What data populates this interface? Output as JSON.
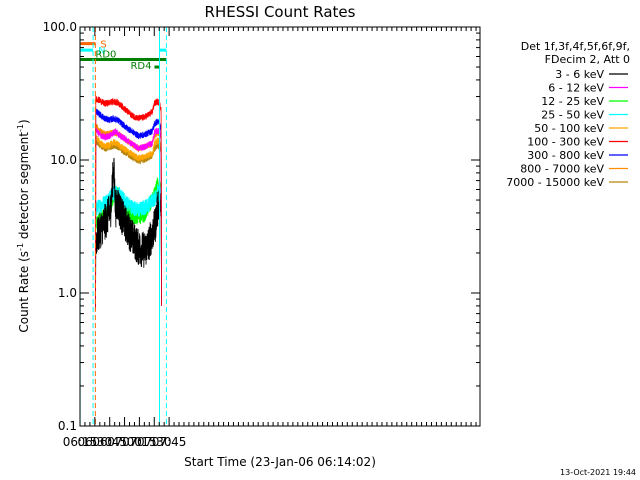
{
  "chart_data": {
    "type": "line",
    "title": "RHESSI Count Rates",
    "xlabel": "Start Time (23-Jan-06 06:14:02)",
    "ylabel_parts": [
      "Count Rate (s",
      "-1",
      " detector segment",
      "-1",
      ")"
    ],
    "yscale": "log",
    "ylim": [
      0.1,
      100.0
    ],
    "xlim_min": [
      375,
      779
    ],
    "y_ticks": [
      {
        "value": 0.1,
        "label": "0.1"
      },
      {
        "value": 1.0,
        "label": "1.0"
      },
      {
        "value": 10.0,
        "label": "10.0"
      },
      {
        "value": 100.0,
        "label": "100.0"
      }
    ],
    "x_ticks": [
      {
        "min": 375,
        "label": "06:15"
      },
      {
        "min": 390,
        "label": "06:30"
      },
      {
        "min": 405,
        "label": "06:45"
      },
      {
        "min": 420,
        "label": "07:00"
      },
      {
        "min": 435,
        "label": "07:15"
      },
      {
        "min": 450,
        "label": "07:30"
      },
      {
        "min": 465,
        "label": "07:45"
      }
    ],
    "legend_header": [
      "Det 1f,3f,4f,5f,6f,9f,",
      "FDecim 2, Att 0"
    ],
    "series": [
      {
        "name": "3 - 6 keV",
        "color": "#000000",
        "points": [
          [
            391,
            2.5
          ],
          [
            394,
            2.8
          ],
          [
            398,
            3.2
          ],
          [
            402,
            3.6
          ],
          [
            406,
            4.3
          ],
          [
            409,
            9.0
          ],
          [
            411,
            4.2
          ],
          [
            413,
            4.8
          ],
          [
            417,
            3.8
          ],
          [
            422,
            3.2
          ],
          [
            428,
            2.6
          ],
          [
            434,
            2.2
          ],
          [
            440,
            2.1
          ],
          [
            444,
            2.3
          ],
          [
            448,
            2.8
          ],
          [
            451,
            3.2
          ],
          [
            453,
            4.2
          ],
          [
            455,
            4.6
          ],
          [
            457,
            4.0
          ]
        ]
      },
      {
        "name": "6 - 12 keV",
        "color": "#ff00ff",
        "points": [
          [
            391,
            17.0
          ],
          [
            395,
            15.5
          ],
          [
            400,
            14.8
          ],
          [
            405,
            15.2
          ],
          [
            409,
            16.0
          ],
          [
            411,
            16.5
          ],
          [
            414,
            15.5
          ],
          [
            420,
            14.5
          ],
          [
            428,
            13.2
          ],
          [
            434,
            12.3
          ],
          [
            440,
            12.5
          ],
          [
            444,
            13.0
          ],
          [
            448,
            13.3
          ],
          [
            450,
            16.0
          ],
          [
            453,
            16.5
          ],
          [
            455,
            16.5
          ],
          [
            457,
            15.0
          ]
        ]
      },
      {
        "name": "12 - 25 keV",
        "color": "#00ff00",
        "points": [
          [
            391,
            3.3
          ],
          [
            395,
            3.6
          ],
          [
            400,
            4.0
          ],
          [
            405,
            4.6
          ],
          [
            409,
            5.2
          ],
          [
            413,
            5.5
          ],
          [
            417,
            4.9
          ],
          [
            422,
            4.2
          ],
          [
            428,
            3.8
          ],
          [
            434,
            3.7
          ],
          [
            440,
            3.9
          ],
          [
            444,
            4.4
          ],
          [
            448,
            5.0
          ],
          [
            451,
            5.6
          ],
          [
            453,
            6.5
          ],
          [
            455,
            6.2
          ],
          [
            457,
            5.8
          ]
        ]
      },
      {
        "name": "25 - 50 keV",
        "color": "#00ffff",
        "points": [
          [
            391,
            4.3
          ],
          [
            395,
            4.5
          ],
          [
            400,
            4.8
          ],
          [
            405,
            5.2
          ],
          [
            409,
            5.6
          ],
          [
            413,
            5.7
          ],
          [
            417,
            5.2
          ],
          [
            422,
            4.8
          ],
          [
            428,
            4.4
          ],
          [
            434,
            4.2
          ],
          [
            440,
            4.4
          ],
          [
            444,
            4.6
          ],
          [
            448,
            5.0
          ],
          [
            451,
            5.2
          ],
          [
            453,
            5.8
          ],
          [
            455,
            5.6
          ],
          [
            457,
            5.2
          ]
        ]
      },
      {
        "name": "50 - 100 keV",
        "color": "#ffa500",
        "points": [
          [
            391,
            15.0
          ],
          [
            395,
            13.6
          ],
          [
            400,
            12.6
          ],
          [
            405,
            13.0
          ],
          [
            409,
            13.6
          ],
          [
            413,
            13.2
          ],
          [
            417,
            12.5
          ],
          [
            422,
            11.8
          ],
          [
            428,
            11.0
          ],
          [
            434,
            10.3
          ],
          [
            440,
            10.6
          ],
          [
            444,
            10.9
          ],
          [
            448,
            11.2
          ],
          [
            450,
            13.0
          ],
          [
            453,
            14.0
          ],
          [
            455,
            13.8
          ],
          [
            457,
            12.8
          ]
        ]
      },
      {
        "name": "100 - 300 keV",
        "color": "#ff0000",
        "points": [
          [
            391,
            29.0
          ],
          [
            395,
            28.0
          ],
          [
            400,
            26.5
          ],
          [
            405,
            27.0
          ],
          [
            409,
            27.5
          ],
          [
            413,
            27.0
          ],
          [
            417,
            25.5
          ],
          [
            422,
            23.5
          ],
          [
            428,
            21.5
          ],
          [
            434,
            20.5
          ],
          [
            440,
            21.0
          ],
          [
            444,
            21.8
          ],
          [
            448,
            23.0
          ],
          [
            450,
            26.5
          ],
          [
            453,
            27.5
          ],
          [
            455,
            27.0
          ],
          [
            457,
            24.0
          ]
        ]
      },
      {
        "name": "300 - 800 keV",
        "color": "#0000ff",
        "points": [
          [
            391,
            23.5
          ],
          [
            395,
            22.0
          ],
          [
            400,
            20.5
          ],
          [
            405,
            20.0
          ],
          [
            409,
            20.5
          ],
          [
            413,
            20.0
          ],
          [
            417,
            18.8
          ],
          [
            422,
            17.5
          ],
          [
            428,
            16.3
          ],
          [
            434,
            15.2
          ],
          [
            440,
            15.5
          ],
          [
            444,
            16.0
          ],
          [
            448,
            16.5
          ],
          [
            450,
            18.5
          ],
          [
            453,
            19.5
          ],
          [
            455,
            19.0
          ],
          [
            457,
            16.8
          ]
        ]
      },
      {
        "name": "800 - 7000 keV",
        "color": "#ff8c00",
        "points": [
          [
            391,
            18.0
          ],
          [
            395,
            16.6
          ],
          [
            400,
            15.5
          ],
          [
            405,
            15.8
          ],
          [
            409,
            16.2
          ],
          [
            413,
            15.9
          ],
          [
            417,
            15.0
          ],
          [
            422,
            14.0
          ],
          [
            428,
            13.1
          ],
          [
            434,
            12.2
          ],
          [
            440,
            12.5
          ],
          [
            444,
            12.9
          ],
          [
            448,
            13.3
          ],
          [
            450,
            15.0
          ],
          [
            453,
            16.0
          ],
          [
            455,
            15.8
          ],
          [
            457,
            14.5
          ]
        ]
      },
      {
        "name": "7000 - 15000 keV",
        "color": "#b8860b",
        "points": [
          [
            391,
            14.0
          ],
          [
            395,
            13.0
          ],
          [
            400,
            12.2
          ],
          [
            405,
            12.5
          ],
          [
            409,
            12.8
          ],
          [
            413,
            12.6
          ],
          [
            417,
            11.9
          ],
          [
            422,
            11.2
          ],
          [
            428,
            10.5
          ],
          [
            434,
            9.8
          ],
          [
            440,
            10.0
          ],
          [
            444,
            10.4
          ],
          [
            448,
            10.8
          ],
          [
            450,
            12.0
          ],
          [
            453,
            12.8
          ],
          [
            455,
            12.6
          ],
          [
            457,
            11.6
          ]
        ]
      }
    ],
    "vlines": [
      {
        "min": 375.1,
        "color": "#00ffff",
        "style": "solid"
      },
      {
        "min": 388.2,
        "color": "#00ffff",
        "style": "dashed"
      },
      {
        "min": 390.5,
        "color": "#ff6600",
        "style": "dashed"
      },
      {
        "min": 455.3,
        "color": "#00ffff",
        "style": "solid"
      },
      {
        "min": 462.3,
        "color": "#00ffff",
        "style": "dashed"
      }
    ],
    "bars": [
      {
        "label": "S",
        "color": "#ff6600",
        "start": 375.1,
        "end": 390.5,
        "y": 75.0,
        "label_side": "end"
      },
      {
        "label": "N",
        "color": "#00ffff",
        "start": 375.1,
        "end": 388.2,
        "y": 67.0,
        "label_side": "end"
      },
      {
        "label": "",
        "color": "#00ffff",
        "start": 455.3,
        "end": 462.3,
        "y": 67.0,
        "label_side": "none"
      },
      {
        "label": "RD0",
        "color": "#008000",
        "start": 375.1,
        "end": 462.3,
        "y": 57.0,
        "label_side": "end"
      },
      {
        "label": "RD4",
        "color": "#008000",
        "start": 450.2,
        "end": 455.3,
        "y": 50.0,
        "label_side": "start"
      }
    ]
  },
  "footer_timestamp": "13-Oct-2021 19:44"
}
